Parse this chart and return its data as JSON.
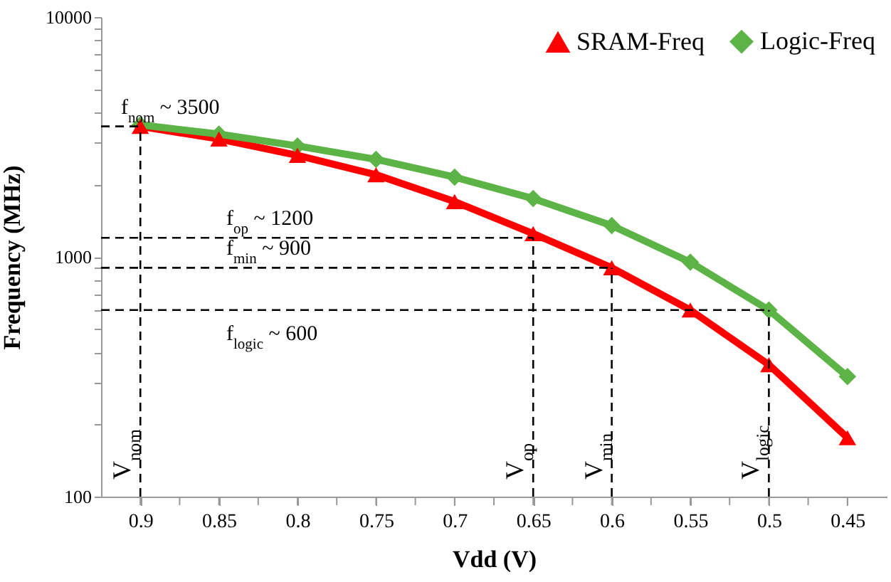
{
  "chart_data": {
    "type": "line",
    "xlabel": "Vdd (V)",
    "ylabel": "Frequency (MHz)",
    "x": [
      0.9,
      0.85,
      0.8,
      0.75,
      0.7,
      0.65,
      0.6,
      0.55,
      0.5,
      0.45
    ],
    "series": [
      {
        "name": "SRAM-Freq",
        "color": "#ff0000",
        "marker": "triangle",
        "values": [
          3500,
          3100,
          2650,
          2200,
          1700,
          1250,
          900,
          600,
          355,
          176
        ]
      },
      {
        "name": "Logic-Freq",
        "color": "#5cb346",
        "marker": "diamond",
        "values": [
          3550,
          3250,
          2900,
          2550,
          2150,
          1750,
          1350,
          950,
          600,
          317
        ]
      }
    ],
    "xlim": [
      0.925,
      0.425
    ],
    "xticks": [
      0.9,
      {
        "value": 0.875,
        "label": null
      },
      0.85,
      {
        "value": 0.825,
        "label": null
      },
      0.8,
      {
        "value": 0.775,
        "label": null
      },
      0.75,
      {
        "value": 0.725,
        "label": null
      },
      0.7,
      {
        "value": 0.675,
        "label": null
      },
      0.65,
      {
        "value": 0.625,
        "label": null
      },
      0.6,
      {
        "value": 0.575,
        "label": null
      },
      0.55,
      {
        "value": 0.525,
        "label": null
      },
      0.5,
      {
        "value": 0.475,
        "label": null
      },
      0.45
    ],
    "ylim": [
      100,
      10000
    ],
    "log": true,
    "yticks": [
      100,
      {
        "value": 200,
        "label": null
      },
      {
        "value": 300,
        "label": null
      },
      {
        "value": 400,
        "label": null
      },
      {
        "value": 500,
        "label": null
      },
      {
        "value": 600,
        "label": null
      },
      {
        "value": 700,
        "label": null
      },
      {
        "value": 800,
        "label": null
      },
      {
        "value": 900,
        "label": null
      },
      1000,
      {
        "value": 2000,
        "label": null
      },
      {
        "value": 3000,
        "label": null
      },
      {
        "value": 4000,
        "label": null
      },
      {
        "value": 5000,
        "label": null
      },
      {
        "value": 6000,
        "label": null
      },
      {
        "value": 7000,
        "label": null
      },
      {
        "value": 8000,
        "label": null
      },
      {
        "value": 9000,
        "label": null
      },
      10000
    ],
    "ref_lines": [
      {
        "axis": "y",
        "value": 3500,
        "label": "f$_{nom}$ ~ 3500",
        "line_style": "dashed"
      },
      {
        "axis": "y",
        "value": 1200,
        "label": "f$_{op}$ ~ 1200",
        "line_style": "dashed"
      },
      {
        "axis": "y",
        "value": 900,
        "label": "f$_{min}$ ~ 900",
        "line_style": "dashed"
      },
      {
        "axis": "y",
        "value": 600,
        "label": "f$_{logic}$ ~ 600",
        "line_style": "dashed"
      },
      {
        "axis": "x",
        "value": 0.9,
        "label": "V$_{nom}$",
        "line_style": "dashed"
      },
      {
        "axis": "x",
        "value": 0.65,
        "label": "V$_{op}$",
        "line_style": "dashed"
      },
      {
        "axis": "x",
        "value": 0.6,
        "label": "V$_{min}$",
        "line_style": "dashed"
      },
      {
        "axis": "x",
        "value": 0.5,
        "label": "V$_{logic}$",
        "line_style": "dashed"
      }
    ],
    "grid": false,
    "legend": "top right"
  }
}
